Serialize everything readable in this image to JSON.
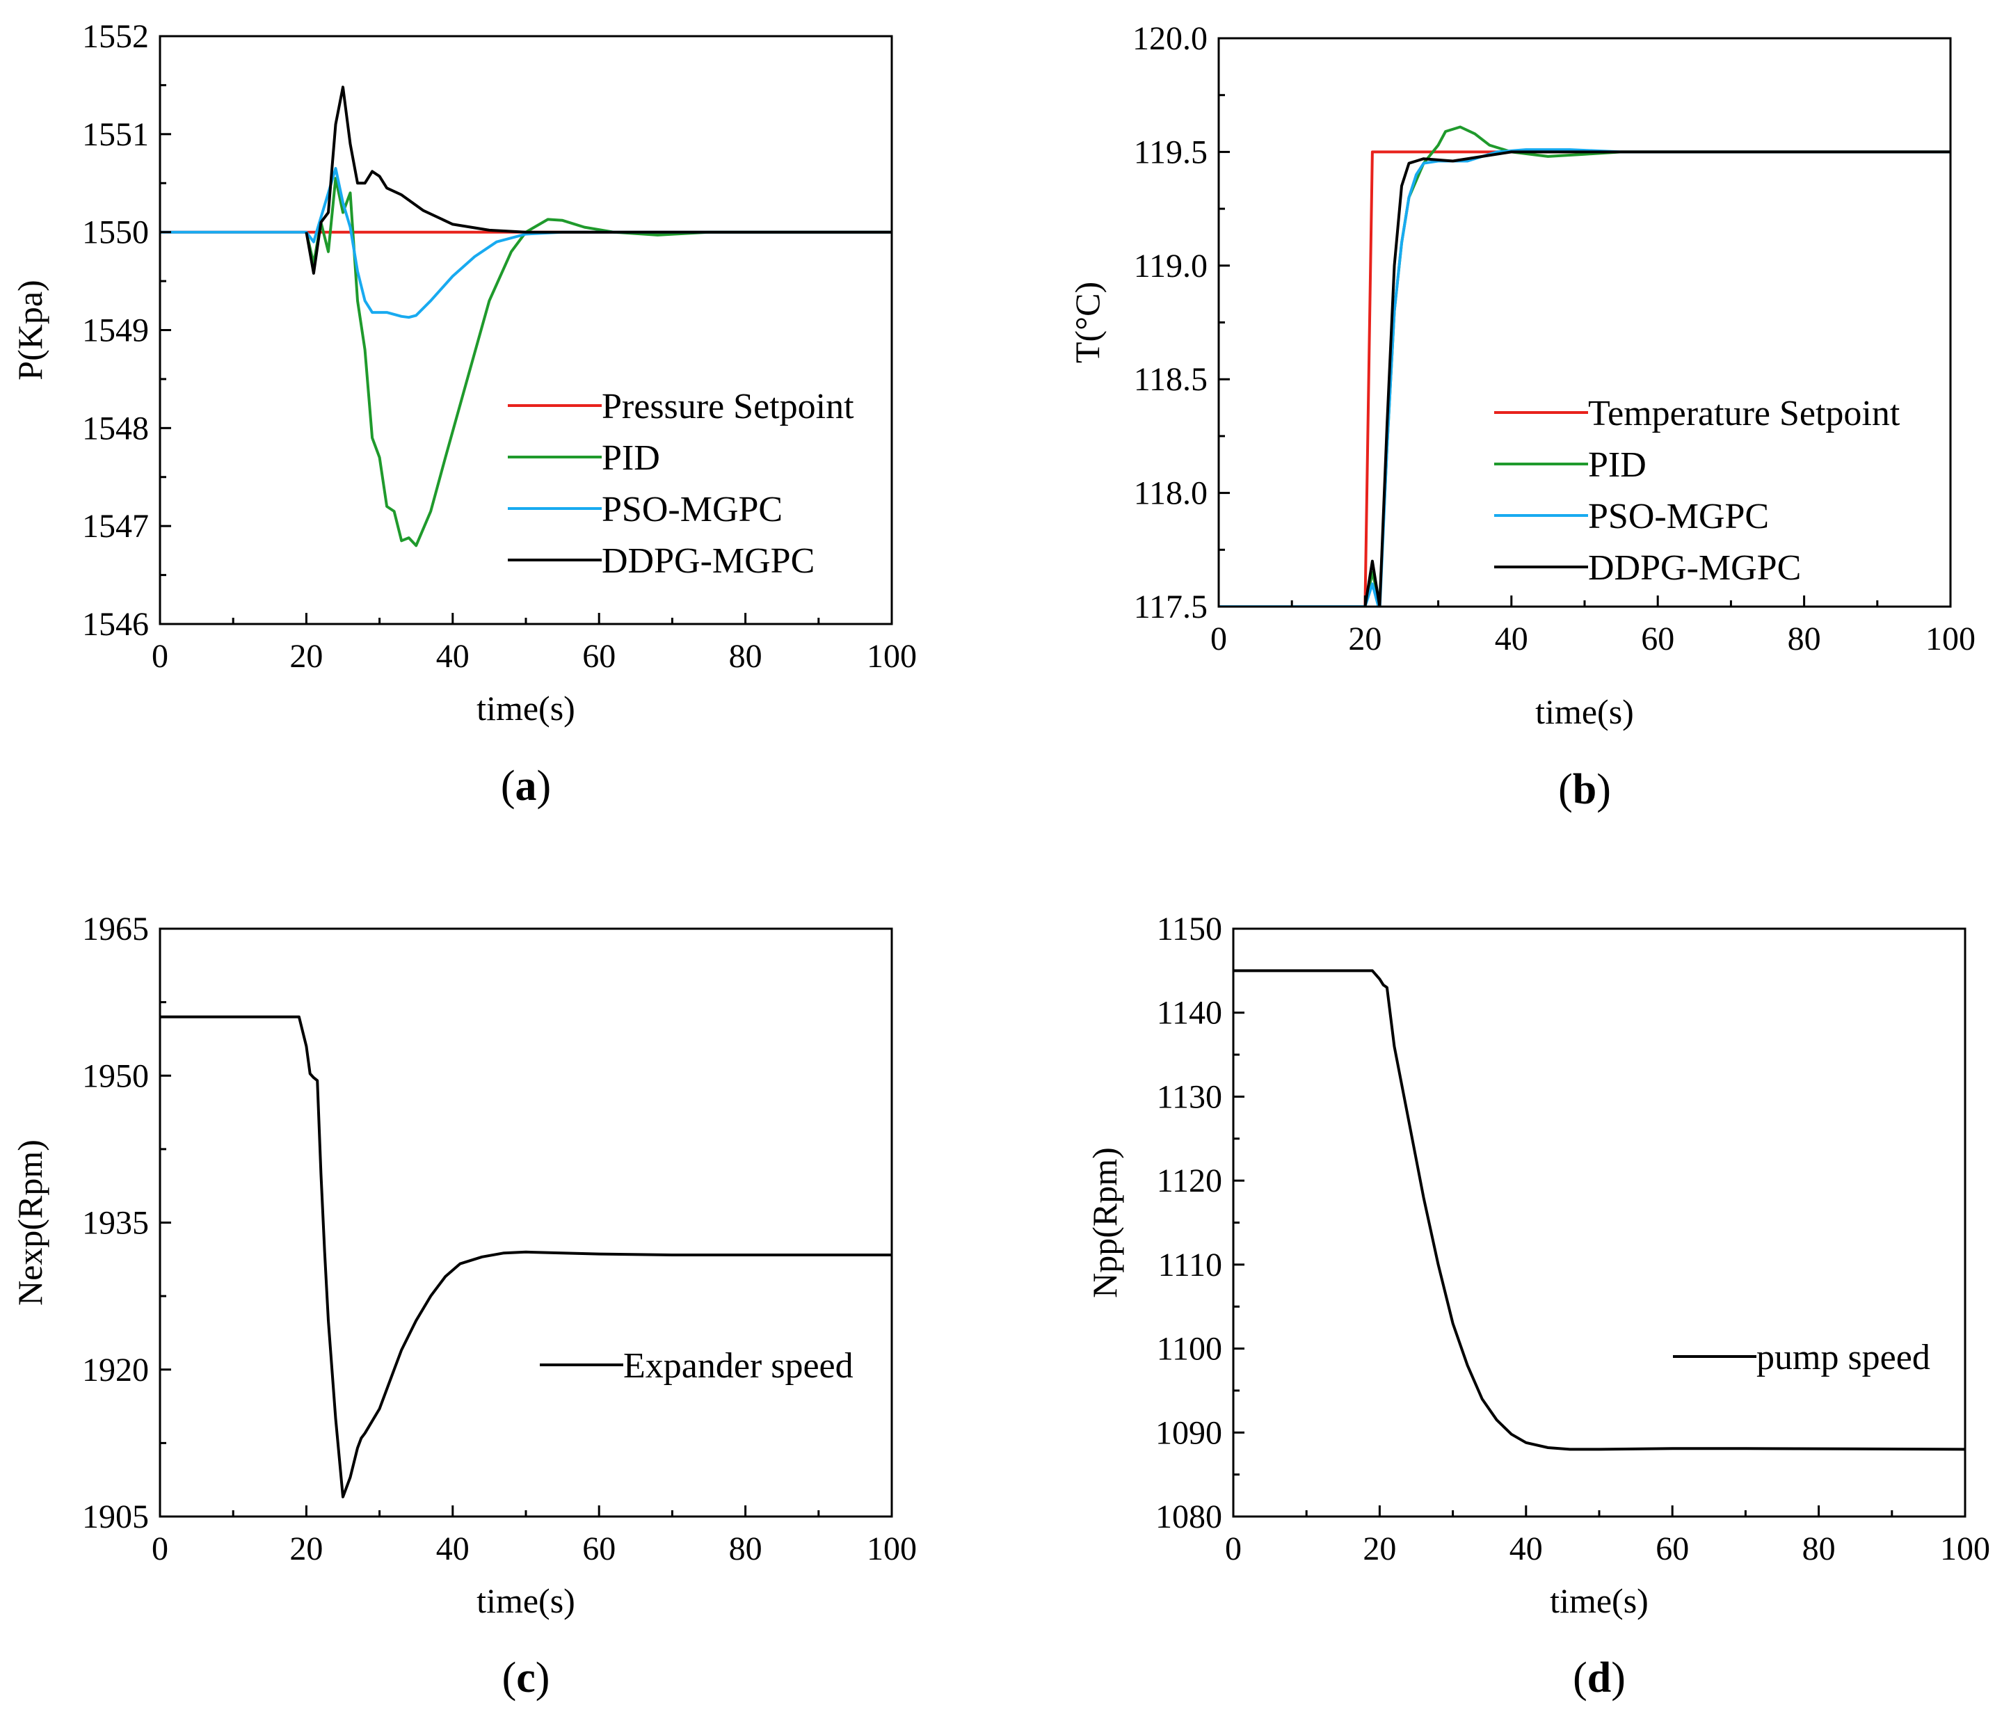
{
  "chart_data": [
    {
      "id": "a",
      "type": "line",
      "panel_label": "a",
      "xlabel": "time(s)",
      "ylabel": "P(Kpa)",
      "xlim": [
        0,
        100
      ],
      "ylim": [
        1546,
        1552
      ],
      "xticks": [
        0,
        20,
        40,
        60,
        80,
        100
      ],
      "yticks": [
        1546,
        1547,
        1548,
        1549,
        1550,
        1551,
        1552
      ],
      "legend_position": "center-right",
      "series": [
        {
          "name": "Pressure Setpoint",
          "color": "#e8221c",
          "points": [
            [
              0,
              1550
            ],
            [
              100,
              1550
            ]
          ]
        },
        {
          "name": "PID",
          "color": "#1f9a2c",
          "points": [
            [
              20,
              1550
            ],
            [
              21,
              1549.68
            ],
            [
              22,
              1550.1
            ],
            [
              23,
              1549.8
            ],
            [
              24,
              1550.55
            ],
            [
              25,
              1550.2
            ],
            [
              26,
              1550.4
            ],
            [
              27,
              1549.3
            ],
            [
              28,
              1548.8
            ],
            [
              29,
              1547.9
            ],
            [
              30,
              1547.7
            ],
            [
              31,
              1547.2
            ],
            [
              32,
              1547.15
            ],
            [
              33,
              1546.85
            ],
            [
              34,
              1546.88
            ],
            [
              35,
              1546.8
            ],
            [
              37,
              1547.15
            ],
            [
              39,
              1547.7
            ],
            [
              42,
              1548.5
            ],
            [
              45,
              1549.3
            ],
            [
              48,
              1549.8
            ],
            [
              50,
              1550.0
            ],
            [
              53,
              1550.13
            ],
            [
              55,
              1550.12
            ],
            [
              58,
              1550.05
            ],
            [
              62,
              1550.0
            ],
            [
              68,
              1549.97
            ],
            [
              75,
              1550.0
            ],
            [
              85,
              1550.0
            ],
            [
              100,
              1550.0
            ]
          ]
        },
        {
          "name": "PSO-MGPC",
          "color": "#18aaf0",
          "points": [
            [
              0,
              1550
            ],
            [
              20,
              1550
            ],
            [
              21,
              1549.9
            ],
            [
              22,
              1550.15
            ],
            [
              23,
              1550.4
            ],
            [
              24,
              1550.65
            ],
            [
              25,
              1550.3
            ],
            [
              26,
              1550.05
            ],
            [
              27,
              1549.6
            ],
            [
              28,
              1549.3
            ],
            [
              29,
              1549.18
            ],
            [
              31,
              1549.18
            ],
            [
              33,
              1549.14
            ],
            [
              34,
              1549.13
            ],
            [
              35,
              1549.15
            ],
            [
              37,
              1549.3
            ],
            [
              40,
              1549.55
            ],
            [
              43,
              1549.75
            ],
            [
              46,
              1549.9
            ],
            [
              50,
              1549.98
            ],
            [
              55,
              1550.0
            ],
            [
              100,
              1550.0
            ]
          ]
        },
        {
          "name": "DDPG-MGPC",
          "color": "#000000",
          "points": [
            [
              20,
              1550
            ],
            [
              21,
              1549.58
            ],
            [
              22,
              1550.1
            ],
            [
              23,
              1550.2
            ],
            [
              24,
              1551.1
            ],
            [
              25,
              1551.48
            ],
            [
              26,
              1550.9
            ],
            [
              27,
              1550.5
            ],
            [
              28,
              1550.5
            ],
            [
              29,
              1550.62
            ],
            [
              30,
              1550.57
            ],
            [
              31,
              1550.45
            ],
            [
              33,
              1550.38
            ],
            [
              36,
              1550.22
            ],
            [
              40,
              1550.08
            ],
            [
              45,
              1550.02
            ],
            [
              50,
              1550.0
            ],
            [
              100,
              1550.0
            ]
          ]
        }
      ]
    },
    {
      "id": "b",
      "type": "line",
      "panel_label": "b",
      "xlabel": "time(s)",
      "ylabel": "T(°C)",
      "xlim": [
        0,
        100
      ],
      "ylim": [
        117.5,
        120.0
      ],
      "xticks": [
        0,
        20,
        40,
        60,
        80,
        100
      ],
      "yticks": [
        117.5,
        118.0,
        118.5,
        119.0,
        119.5,
        120.0
      ],
      "ytick_labels": [
        "117.5",
        "118.0",
        "118.5",
        "119.0",
        "119.5",
        "120.0"
      ],
      "legend_position": "center-right",
      "series": [
        {
          "name": "Temperature Setpoint",
          "color": "#e8221c",
          "points": [
            [
              0,
              117.5
            ],
            [
              20,
              117.5
            ],
            [
              21,
              119.5
            ],
            [
              100,
              119.5
            ]
          ]
        },
        {
          "name": "PID",
          "color": "#1f9a2c",
          "points": [
            [
              20,
              117.5
            ],
            [
              21,
              117.65
            ],
            [
              22,
              117.52
            ],
            [
              23,
              118.2
            ],
            [
              24,
              118.8
            ],
            [
              25,
              119.1
            ],
            [
              26,
              119.3
            ],
            [
              28,
              119.45
            ],
            [
              30,
              119.53
            ],
            [
              31,
              119.59
            ],
            [
              33,
              119.61
            ],
            [
              35,
              119.58
            ],
            [
              37,
              119.53
            ],
            [
              40,
              119.5
            ],
            [
              45,
              119.48
            ],
            [
              50,
              119.49
            ],
            [
              55,
              119.5
            ],
            [
              100,
              119.5
            ]
          ]
        },
        {
          "name": "PSO-MGPC",
          "color": "#18aaf0",
          "points": [
            [
              0,
              117.5
            ],
            [
              20,
              117.5
            ],
            [
              21,
              117.6
            ],
            [
              22,
              117.48
            ],
            [
              23,
              118.2
            ],
            [
              24,
              118.8
            ],
            [
              25,
              119.1
            ],
            [
              26,
              119.3
            ],
            [
              27,
              119.4
            ],
            [
              28,
              119.45
            ],
            [
              30,
              119.46
            ],
            [
              34,
              119.46
            ],
            [
              38,
              119.5
            ],
            [
              42,
              119.51
            ],
            [
              48,
              119.51
            ],
            [
              55,
              119.5
            ],
            [
              100,
              119.5
            ]
          ]
        },
        {
          "name": "DDPG-MGPC",
          "color": "#000000",
          "points": [
            [
              20,
              117.5
            ],
            [
              21,
              117.7
            ],
            [
              22,
              117.5
            ],
            [
              23,
              118.3
            ],
            [
              24,
              119.0
            ],
            [
              25,
              119.35
            ],
            [
              26,
              119.45
            ],
            [
              28,
              119.47
            ],
            [
              32,
              119.46
            ],
            [
              36,
              119.48
            ],
            [
              40,
              119.5
            ],
            [
              100,
              119.5
            ]
          ]
        }
      ]
    },
    {
      "id": "c",
      "type": "line",
      "panel_label": "c",
      "xlabel": "time(s)",
      "ylabel": "Nexp(Rpm)",
      "xlim": [
        0,
        100
      ],
      "ylim": [
        1905,
        1965
      ],
      "xticks": [
        0,
        20,
        40,
        60,
        80,
        100
      ],
      "yticks": [
        1905,
        1920,
        1935,
        1950,
        1965
      ],
      "legend_position": "center-right",
      "series": [
        {
          "name": "Expander speed",
          "color": "#000000",
          "points": [
            [
              0,
              1956
            ],
            [
              19,
              1956
            ],
            [
              20,
              1953
            ],
            [
              20.5,
              1950.2
            ],
            [
              21,
              1949.8
            ],
            [
              21.5,
              1949.5
            ],
            [
              22,
              1940
            ],
            [
              22.5,
              1932
            ],
            [
              23,
              1925
            ],
            [
              24,
              1915
            ],
            [
              25,
              1907
            ],
            [
              26,
              1909
            ],
            [
              27,
              1912
            ],
            [
              27.5,
              1913
            ],
            [
              28,
              1913.5
            ],
            [
              30,
              1916
            ],
            [
              32,
              1920
            ],
            [
              33,
              1922
            ],
            [
              35,
              1925
            ],
            [
              37,
              1927.5
            ],
            [
              39,
              1929.5
            ],
            [
              41,
              1930.8
            ],
            [
              44,
              1931.5
            ],
            [
              47,
              1931.9
            ],
            [
              50,
              1932
            ],
            [
              55,
              1931.9
            ],
            [
              60,
              1931.8
            ],
            [
              70,
              1931.7
            ],
            [
              100,
              1931.7
            ]
          ]
        }
      ]
    },
    {
      "id": "d",
      "type": "line",
      "panel_label": "d",
      "xlabel": "time(s)",
      "ylabel": "Npp(Rpm)",
      "xlim": [
        0,
        100
      ],
      "ylim": [
        1080,
        1150
      ],
      "xticks": [
        0,
        20,
        40,
        60,
        80,
        100
      ],
      "yticks": [
        1080,
        1090,
        1100,
        1110,
        1120,
        1130,
        1140,
        1150
      ],
      "legend_position": "center-right",
      "series": [
        {
          "name": "pump speed",
          "color": "#000000",
          "points": [
            [
              0,
              1145
            ],
            [
              19,
              1145
            ],
            [
              20,
              1144
            ],
            [
              20.5,
              1143.3
            ],
            [
              21,
              1143
            ],
            [
              22,
              1136
            ],
            [
              24,
              1127
            ],
            [
              26,
              1118
            ],
            [
              28,
              1110
            ],
            [
              30,
              1103
            ],
            [
              32,
              1098
            ],
            [
              34,
              1094
            ],
            [
              36,
              1091.5
            ],
            [
              38,
              1089.8
            ],
            [
              40,
              1088.8
            ],
            [
              43,
              1088.2
            ],
            [
              46,
              1088
            ],
            [
              50,
              1088
            ],
            [
              60,
              1088.1
            ],
            [
              70,
              1088.1
            ],
            [
              100,
              1088
            ]
          ]
        }
      ]
    }
  ]
}
